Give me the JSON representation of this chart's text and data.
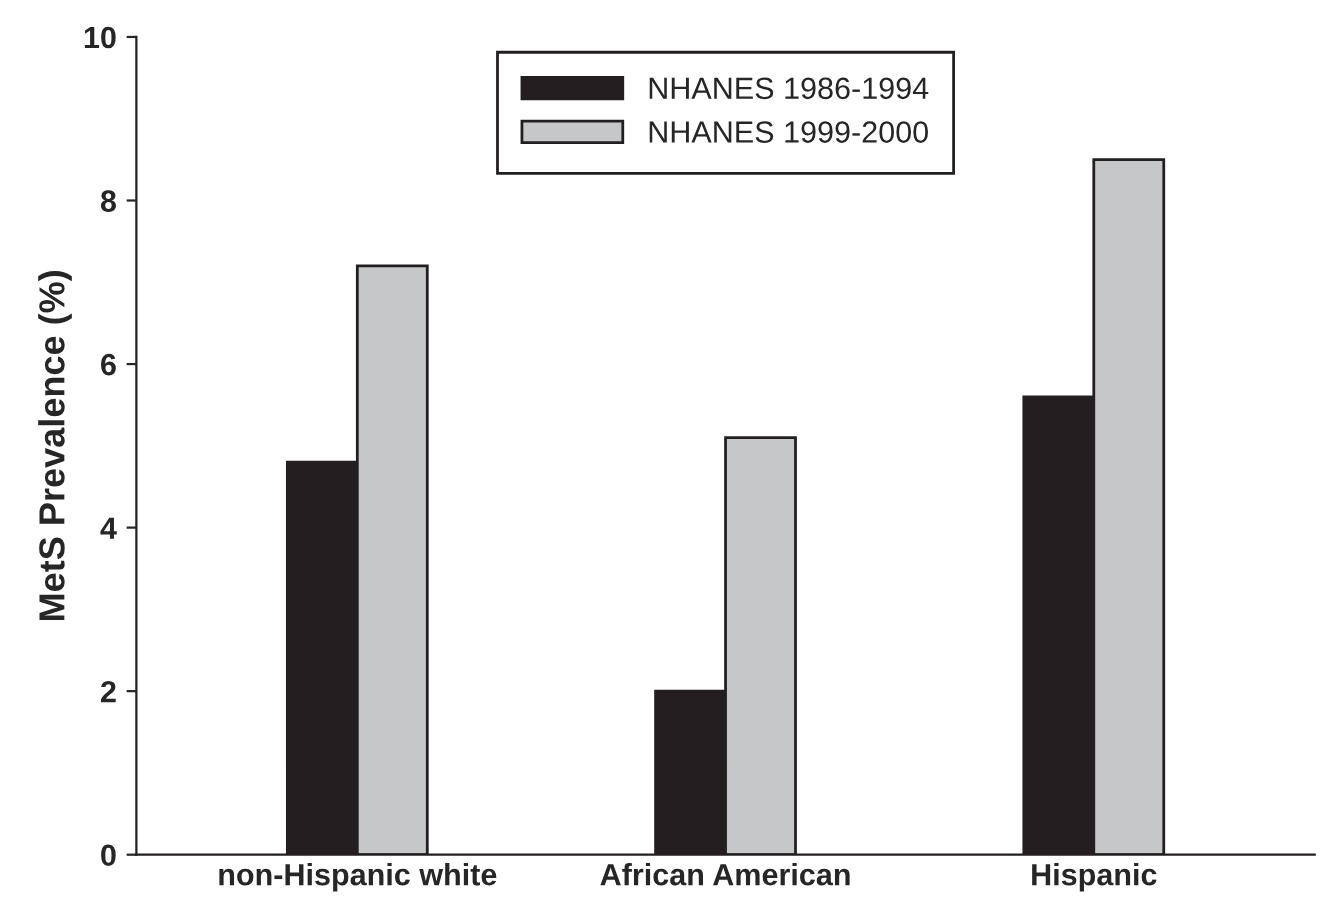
{
  "chart_data": {
    "type": "bar",
    "ylabel": "MetS Prevalence (%)",
    "categories": [
      "non-Hispanic white",
      "African American",
      "Hispanic"
    ],
    "series": [
      {
        "name": "NHANES 1986-1994",
        "color": "#231f20",
        "values": [
          4.8,
          2.0,
          5.6
        ]
      },
      {
        "name": "NHANES 1999-2000",
        "color": "#c6c7c9",
        "values": [
          7.2,
          5.1,
          8.5
        ]
      }
    ],
    "ylim": [
      0,
      10
    ],
    "yticks": [
      0,
      2,
      4,
      6,
      8,
      10
    ],
    "grid": false,
    "legend": "top"
  }
}
